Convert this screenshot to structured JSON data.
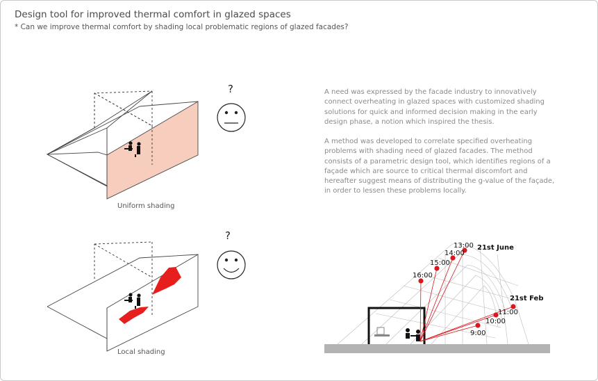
{
  "header": {
    "title": "Design tool for improved thermal comfort in glazed spaces",
    "subtitle": "* Can we improve thermal comfort by shading local problematic regions of glazed facades?"
  },
  "diagrams": {
    "uniform": {
      "caption": "Uniform shading",
      "question": "?",
      "face": "neutral-face-icon"
    },
    "local": {
      "caption": "Local shading",
      "question": "?",
      "face": "smiley-face-icon"
    }
  },
  "text": {
    "para1": "A need was expressed by the facade industry to innovatively connect overheating in glazed spaces with customized shading solutions for quick and informed decision making in the early design phase, a notion which inspired the thesis.",
    "para2": "A method was developed to correlate specified overheating problems with shading need of glazed facades. The method consists of a parametric design tool, which identifies regions of a façade which are source to critical thermal discomfort and hereafter suggest means of distributing the g-value of the façade, in order to lessen these problems locally."
  },
  "sun_diagram": {
    "june_label": "21st June",
    "feb_label": "21st Feb",
    "june_times": [
      "16:00",
      "15:00",
      "14:00",
      "13:00"
    ],
    "feb_times": [
      "11:00",
      "10:00",
      "9:00"
    ]
  },
  "colors": {
    "uniform_shade": "#f7cdbd",
    "local_shade": "#e61e1e",
    "sun_marker": "#d7191f",
    "ground": "#b3b3b3"
  }
}
